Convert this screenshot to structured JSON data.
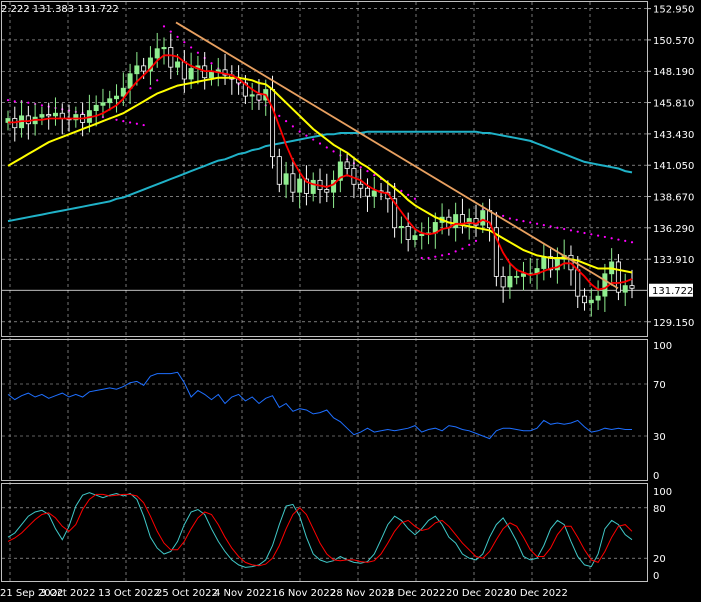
{
  "header": {
    "ohlc_text": "2.222 131.383 131.722"
  },
  "colors": {
    "background": "#000000",
    "grid": "#c0c0c0",
    "candle_up": "#ffffff",
    "candle_body_up": "#90ee90",
    "candle_down": "#000000",
    "ma_fast": "#ff0000",
    "ma_mid": "#ffff00",
    "ma_slow": "#20b2c8",
    "sar": "#ff00ff",
    "trendline": "#e8a060",
    "rsi": "#1e6fff",
    "stoch_main": "#40c8c8",
    "stoch_signal": "#ff0000"
  },
  "chart_data": [
    {
      "type": "candlestick",
      "panel": "price",
      "y_ticks": [
        "152.950",
        "150.570",
        "148.190",
        "145.810",
        "143.430",
        "141.050",
        "138.670",
        "136.290",
        "133.910",
        "129.150"
      ],
      "ylim": [
        128.3,
        153.3
      ],
      "current_price_label": "131.722",
      "x_labels": [
        "21 Sep 2022",
        "3 Oct 2022",
        "13 Oct 2022",
        "25 Oct 2022",
        "4 Nov 2022",
        "16 Nov 2022",
        "28 Nov 2022",
        "8 Dec 2022",
        "20 Dec 2022",
        "30 Dec 2022"
      ],
      "close": [
        144.6,
        143.9,
        144.8,
        144.2,
        144.7,
        144.9,
        144.8,
        145.0,
        144.6,
        144.5,
        144.9,
        144.3,
        145.2,
        145.6,
        145.8,
        146.1,
        146.3,
        146.9,
        148.0,
        148.6,
        148.2,
        149.2,
        149.9,
        150.0,
        148.5,
        148.9,
        147.6,
        148.4,
        148.6,
        147.7,
        148.1,
        148.3,
        147.9,
        147.6,
        147.3,
        146.3,
        146.4,
        146.0,
        146.8,
        141.7,
        139.6,
        140.4,
        139.0,
        140.0,
        138.9,
        139.9,
        139.2,
        139.0,
        139.9,
        141.3,
        140.8,
        139.6,
        139.3,
        138.7,
        139.1,
        139.0,
        138.5,
        136.3,
        136.4,
        135.4,
        135.7,
        135.8,
        135.9,
        136.7,
        137.1,
        136.3,
        137.3,
        136.6,
        137.0,
        136.5,
        137.6,
        136.3,
        132.6,
        131.8,
        132.6,
        132.6,
        132.8,
        132.8,
        133.2,
        134.1,
        133.1,
        133.9,
        134.2,
        133.1,
        131.1,
        130.6,
        130.8,
        131.1,
        132.8,
        133.7,
        131.4,
        131.9,
        131.7
      ],
      "series": [
        {
          "name": "",
          "kind": "ma_fast",
          "values": [
            144.3,
            144.3,
            144.4,
            144.4,
            144.5,
            144.5,
            144.6,
            144.6,
            144.6,
            144.6,
            144.6,
            144.6,
            144.7,
            144.8,
            145.0,
            145.3,
            145.6,
            146.1,
            146.8,
            147.4,
            147.9,
            148.4,
            149.0,
            149.4,
            149.4,
            149.3,
            148.9,
            148.6,
            148.4,
            148.2,
            148.2,
            148.1,
            148.0,
            147.9,
            147.6,
            147.2,
            146.8,
            146.5,
            146.4,
            145.4,
            144.0,
            142.6,
            141.4,
            140.5,
            139.8,
            139.6,
            139.5,
            139.4,
            139.6,
            140.1,
            140.3,
            140.1,
            139.9,
            139.5,
            139.2,
            139.0,
            138.9,
            138.2,
            137.5,
            136.8,
            136.2,
            135.9,
            135.8,
            135.9,
            136.2,
            136.3,
            136.6,
            136.6,
            136.7,
            136.6,
            136.9,
            136.7,
            135.5,
            134.4,
            133.6,
            133.1,
            132.9,
            132.7,
            132.8,
            133.0,
            133.2,
            133.3,
            133.6,
            133.6,
            133.1,
            132.6,
            132.0,
            131.6,
            131.7,
            132.1,
            132.1,
            132.2,
            132.4
          ]
        },
        {
          "name": "",
          "kind": "ma_mid",
          "values": [
            141.0,
            141.3,
            141.6,
            141.9,
            142.2,
            142.5,
            142.8,
            143.0,
            143.2,
            143.4,
            143.6,
            143.8,
            144.0,
            144.2,
            144.4,
            144.6,
            144.8,
            145.0,
            145.3,
            145.6,
            145.9,
            146.2,
            146.5,
            146.7,
            146.9,
            147.1,
            147.2,
            147.3,
            147.4,
            147.5,
            147.6,
            147.7,
            147.7,
            147.7,
            147.7,
            147.6,
            147.5,
            147.3,
            147.2,
            146.8,
            146.3,
            145.8,
            145.3,
            144.8,
            144.3,
            143.8,
            143.4,
            143.0,
            142.6,
            142.3,
            142.0,
            141.6,
            141.2,
            140.9,
            140.5,
            140.1,
            139.7,
            139.3,
            138.9,
            138.4,
            138.0,
            137.7,
            137.4,
            137.1,
            136.9,
            136.7,
            136.6,
            136.5,
            136.4,
            136.3,
            136.2,
            136.1,
            135.8,
            135.5,
            135.2,
            134.9,
            134.6,
            134.4,
            134.2,
            134.1,
            134.0,
            134.0,
            134.0,
            133.9,
            133.8,
            133.6,
            133.4,
            133.2,
            133.2,
            133.2,
            133.1,
            133.0,
            132.9
          ]
        },
        {
          "name": "",
          "kind": "ma_slow",
          "values": [
            136.8,
            136.9,
            137.0,
            137.1,
            137.2,
            137.3,
            137.4,
            137.5,
            137.6,
            137.7,
            137.8,
            137.9,
            138.0,
            138.1,
            138.2,
            138.3,
            138.5,
            138.6,
            138.8,
            139.0,
            139.2,
            139.4,
            139.6,
            139.8,
            140.0,
            140.2,
            140.4,
            140.6,
            140.8,
            141.0,
            141.2,
            141.4,
            141.5,
            141.7,
            141.9,
            142.0,
            142.2,
            142.3,
            142.5,
            142.6,
            142.7,
            142.8,
            142.9,
            143.0,
            143.1,
            143.2,
            143.3,
            143.4,
            143.4,
            143.5,
            143.5,
            143.5,
            143.5,
            143.6,
            143.6,
            143.6,
            143.6,
            143.6,
            143.6,
            143.6,
            143.6,
            143.6,
            143.6,
            143.6,
            143.6,
            143.6,
            143.6,
            143.6,
            143.6,
            143.6,
            143.5,
            143.5,
            143.4,
            143.3,
            143.2,
            143.1,
            143.0,
            142.9,
            142.7,
            142.5,
            142.3,
            142.1,
            141.9,
            141.7,
            141.5,
            141.3,
            141.2,
            141.1,
            141.0,
            140.9,
            140.8,
            140.6,
            140.5
          ]
        }
      ],
      "sar": [
        146.0,
        145.9,
        145.9,
        145.8,
        145.7,
        145.6,
        145.5,
        145.4,
        145.3,
        145.2,
        145.1,
        145.0,
        144.9,
        144.8,
        144.7,
        144.6,
        144.5,
        144.4,
        144.3,
        144.2,
        144.1,
        146.9,
        147.5,
        151.6,
        151.2,
        150.8,
        150.4,
        150.0,
        149.6,
        149.2,
        148.8,
        148.4,
        148.0,
        147.6,
        147.2,
        146.8,
        146.4,
        146.0,
        145.6,
        145.2,
        144.8,
        144.4,
        144.0,
        143.6,
        143.3,
        143.0,
        142.7,
        142.4,
        142.1,
        141.8,
        141.5,
        141.2,
        140.9,
        140.6,
        140.3,
        140.0,
        139.7,
        139.4,
        139.1,
        138.8,
        138.5,
        134.0,
        134.0,
        134.1,
        134.2,
        134.3,
        134.5,
        134.7,
        135.0,
        135.3,
        137.7,
        137.5,
        137.3,
        137.2,
        137.0,
        136.9,
        136.8,
        136.7,
        136.6,
        136.5,
        136.4,
        136.3,
        136.2,
        136.1,
        136.0,
        135.9,
        135.8,
        135.7,
        135.6,
        135.5,
        135.4,
        135.3,
        135.2
      ],
      "trendline": {
        "start": {
          "date": "13 Oct 2022",
          "price": 151.9
        },
        "end": {
          "date": "30 Dec 2022",
          "price": 131.7
        }
      }
    },
    {
      "type": "line",
      "panel": "rsi",
      "y_ticks": [
        "100",
        "70",
        "30",
        "0"
      ],
      "ylim": [
        0,
        100
      ],
      "series": [
        {
          "name": "",
          "values": [
            62,
            58,
            61,
            63,
            60,
            62,
            59,
            61,
            63,
            60,
            62,
            60,
            64,
            65,
            66,
            67,
            66,
            68,
            71,
            72,
            69,
            76,
            78,
            78,
            78,
            79,
            71,
            60,
            65,
            62,
            58,
            62,
            55,
            60,
            62,
            57,
            60,
            55,
            59,
            61,
            52,
            55,
            49,
            51,
            50,
            47,
            48,
            50,
            44,
            41,
            36,
            31,
            33,
            36,
            33,
            34,
            35,
            34,
            35,
            36,
            38,
            33,
            35,
            36,
            34,
            38,
            37,
            35,
            34,
            32,
            30,
            28,
            34,
            36,
            36,
            35,
            34,
            34,
            36,
            42,
            39,
            40,
            39,
            40,
            42,
            37,
            33,
            34,
            36,
            35,
            36,
            35,
            35
          ]
        }
      ]
    },
    {
      "type": "line",
      "panel": "stochastic",
      "y_ticks": [
        "100",
        "80",
        "20",
        "0"
      ],
      "ylim": [
        0,
        100
      ],
      "series": [
        {
          "name": "",
          "kind": "main",
          "values": [
            45,
            50,
            60,
            70,
            75,
            77,
            72,
            55,
            42,
            58,
            82,
            95,
            98,
            95,
            92,
            95,
            97,
            94,
            97,
            90,
            70,
            45,
            32,
            25,
            28,
            40,
            60,
            75,
            78,
            72,
            55,
            40,
            28,
            18,
            12,
            9,
            10,
            12,
            18,
            35,
            60,
            82,
            84,
            70,
            45,
            25,
            18,
            15,
            17,
            22,
            18,
            15,
            14,
            16,
            25,
            42,
            60,
            70,
            65,
            55,
            48,
            55,
            65,
            70,
            60,
            45,
            38,
            25,
            20,
            18,
            25,
            45,
            60,
            68,
            55,
            40,
            22,
            18,
            20,
            35,
            55,
            65,
            60,
            40,
            22,
            12,
            10,
            25,
            55,
            65,
            60,
            48,
            42
          ]
        },
        {
          "name": "",
          "kind": "signal",
          "values": [
            40,
            44,
            50,
            58,
            66,
            72,
            74,
            68,
            58,
            52,
            60,
            78,
            90,
            96,
            96,
            94,
            95,
            96,
            96,
            94,
            86,
            70,
            52,
            38,
            30,
            30,
            40,
            55,
            68,
            75,
            72,
            60,
            45,
            32,
            22,
            15,
            12,
            11,
            13,
            20,
            35,
            55,
            72,
            80,
            72,
            55,
            38,
            25,
            18,
            17,
            18,
            18,
            16,
            15,
            17,
            25,
            38,
            52,
            62,
            65,
            58,
            53,
            55,
            62,
            65,
            58,
            48,
            38,
            30,
            22,
            20,
            28,
            42,
            55,
            62,
            58,
            45,
            30,
            22,
            22,
            32,
            48,
            58,
            58,
            45,
            30,
            18,
            15,
            28,
            45,
            58,
            60,
            52
          ]
        }
      ]
    }
  ]
}
